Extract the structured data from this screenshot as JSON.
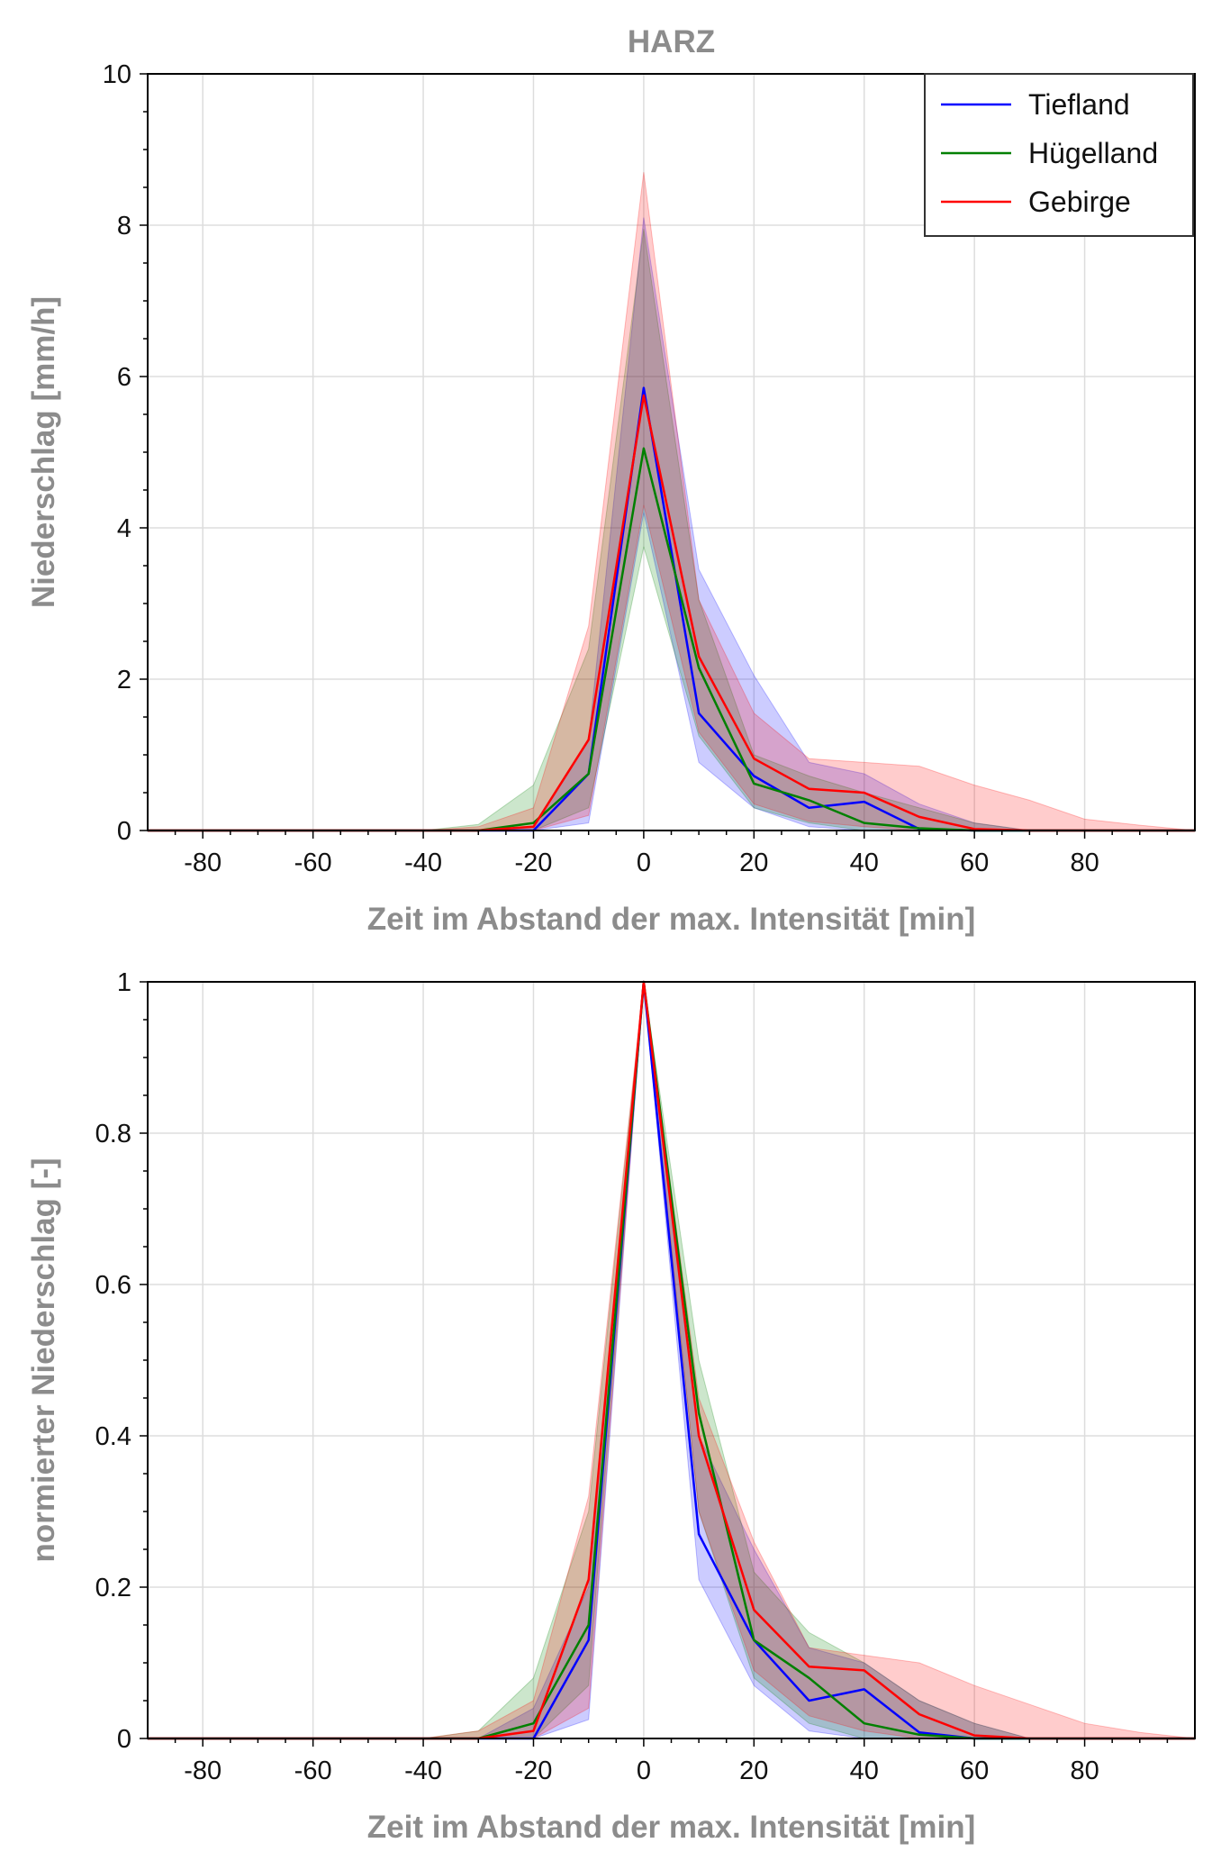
{
  "colors": {
    "Tiefland": "#0000ff",
    "Hügelland": "#008000",
    "Gebirge": "#ff0000"
  },
  "chart_data": [
    {
      "type": "line",
      "title": "HARZ",
      "xlabel": "Zeit im Abstand der max. Intensität [min]",
      "ylabel": "Niederschlag [mm/h]",
      "xlim": [
        -90,
        100
      ],
      "ylim": [
        0,
        10
      ],
      "xticks": [
        -80,
        -60,
        -40,
        -20,
        0,
        20,
        40,
        60,
        80
      ],
      "xtick_labels": [
        "-80",
        "-60",
        "-40",
        "-20",
        "0",
        "20",
        "40",
        "60",
        "80"
      ],
      "yticks": [
        0,
        2,
        4,
        6,
        8,
        10
      ],
      "ytick_labels": [
        "0",
        "2",
        "4",
        "6",
        "8",
        "10"
      ],
      "grid": true,
      "legend": "top-right",
      "x": [
        -90,
        -80,
        -70,
        -60,
        -50,
        -40,
        -30,
        -20,
        -10,
        0,
        10,
        20,
        30,
        40,
        50,
        60,
        70,
        80,
        90,
        100
      ],
      "series": [
        {
          "name": "Tiefland",
          "values": [
            0,
            0,
            0,
            0,
            0,
            0,
            0,
            0,
            0.75,
            5.85,
            1.55,
            0.72,
            0.3,
            0.38,
            0.02,
            0,
            0,
            0,
            0,
            0
          ],
          "lower": [
            0,
            0,
            0,
            0,
            0,
            0,
            0,
            0,
            0.1,
            4.2,
            0.9,
            0.3,
            0.05,
            0,
            0,
            0,
            0,
            0,
            0,
            0
          ],
          "upper": [
            0,
            0,
            0,
            0,
            0,
            0,
            0,
            0.05,
            1.2,
            8.1,
            3.45,
            2.05,
            0.9,
            0.75,
            0.35,
            0.1,
            0,
            0,
            0,
            0
          ]
        },
        {
          "name": "Hügelland",
          "values": [
            0,
            0,
            0,
            0,
            0,
            0,
            0,
            0.1,
            0.75,
            5.05,
            2.15,
            0.62,
            0.4,
            0.1,
            0.03,
            0,
            0,
            0,
            0,
            0
          ],
          "lower": [
            0,
            0,
            0,
            0,
            0,
            0,
            0,
            0,
            0.3,
            3.75,
            1.25,
            0.3,
            0.1,
            0,
            0,
            0,
            0,
            0,
            0,
            0
          ],
          "upper": [
            0,
            0,
            0,
            0,
            0,
            0,
            0.08,
            0.6,
            2.4,
            7.95,
            3.05,
            1.0,
            0.72,
            0.5,
            0.3,
            0.1,
            0,
            0,
            0,
            0
          ]
        },
        {
          "name": "Gebirge",
          "values": [
            0,
            0,
            0,
            0,
            0,
            0,
            0,
            0.05,
            1.2,
            5.75,
            2.3,
            0.95,
            0.55,
            0.5,
            0.18,
            0.02,
            0,
            0,
            0,
            0
          ],
          "lower": [
            0,
            0,
            0,
            0,
            0,
            0,
            0,
            0,
            0.2,
            4.3,
            1.3,
            0.35,
            0.12,
            0.05,
            0,
            0,
            0,
            0,
            0,
            0
          ],
          "upper": [
            0,
            0,
            0,
            0,
            0,
            0,
            0.05,
            0.3,
            2.7,
            8.7,
            3.05,
            1.55,
            0.95,
            0.9,
            0.85,
            0.6,
            0.4,
            0.15,
            0.07,
            0
          ]
        }
      ]
    },
    {
      "type": "line",
      "title": "",
      "xlabel": "Zeit im Abstand der max. Intensität [min]",
      "ylabel": "normierter Niederschlag [-]",
      "xlim": [
        -90,
        100
      ],
      "ylim": [
        0,
        1
      ],
      "xticks": [
        -80,
        -60,
        -40,
        -20,
        0,
        20,
        40,
        60,
        80
      ],
      "xtick_labels": [
        "-80",
        "-60",
        "-40",
        "-20",
        "0",
        "20",
        "40",
        "60",
        "80"
      ],
      "yticks": [
        0,
        0.2,
        0.4,
        0.6,
        0.8,
        1
      ],
      "ytick_labels": [
        "0",
        "0.2",
        "0.4",
        "0.6",
        "0.8",
        "1"
      ],
      "grid": true,
      "legend": "none",
      "x": [
        -90,
        -80,
        -70,
        -60,
        -50,
        -40,
        -30,
        -20,
        -10,
        0,
        10,
        20,
        30,
        40,
        50,
        60,
        70,
        80,
        90,
        100
      ],
      "series": [
        {
          "name": "Tiefland",
          "values": [
            0,
            0,
            0,
            0,
            0,
            0,
            0,
            0,
            0.13,
            1,
            0.27,
            0.13,
            0.05,
            0.065,
            0.008,
            0,
            0,
            0,
            0,
            0
          ],
          "lower": [
            0,
            0,
            0,
            0,
            0,
            0,
            0,
            0,
            0.025,
            1,
            0.21,
            0.07,
            0.01,
            0,
            0,
            0,
            0,
            0,
            0,
            0
          ],
          "upper": [
            0,
            0,
            0,
            0,
            0,
            0,
            0,
            0.04,
            0.2,
            1,
            0.4,
            0.25,
            0.12,
            0.1,
            0.05,
            0.02,
            0,
            0,
            0,
            0
          ]
        },
        {
          "name": "Hügelland",
          "values": [
            0,
            0,
            0,
            0,
            0,
            0,
            0,
            0.02,
            0.15,
            1,
            0.43,
            0.13,
            0.08,
            0.02,
            0.005,
            0,
            0,
            0,
            0,
            0
          ],
          "lower": [
            0,
            0,
            0,
            0,
            0,
            0,
            0,
            0,
            0.07,
            1,
            0.3,
            0.08,
            0.02,
            0,
            0,
            0,
            0,
            0,
            0,
            0
          ],
          "upper": [
            0,
            0,
            0,
            0,
            0,
            0,
            0.01,
            0.08,
            0.3,
            1,
            0.5,
            0.22,
            0.14,
            0.1,
            0.05,
            0.02,
            0,
            0,
            0,
            0
          ]
        },
        {
          "name": "Gebirge",
          "values": [
            0,
            0,
            0,
            0,
            0,
            0,
            0,
            0.01,
            0.21,
            1,
            0.4,
            0.17,
            0.095,
            0.09,
            0.032,
            0.004,
            0,
            0,
            0,
            0
          ],
          "lower": [
            0,
            0,
            0,
            0,
            0,
            0,
            0,
            0,
            0.04,
            1,
            0.3,
            0.09,
            0.03,
            0.01,
            0,
            0,
            0,
            0,
            0,
            0
          ],
          "upper": [
            0,
            0,
            0,
            0,
            0,
            0,
            0.01,
            0.05,
            0.32,
            1,
            0.45,
            0.26,
            0.12,
            0.11,
            0.1,
            0.07,
            0.045,
            0.02,
            0.008,
            0
          ]
        }
      ]
    }
  ]
}
